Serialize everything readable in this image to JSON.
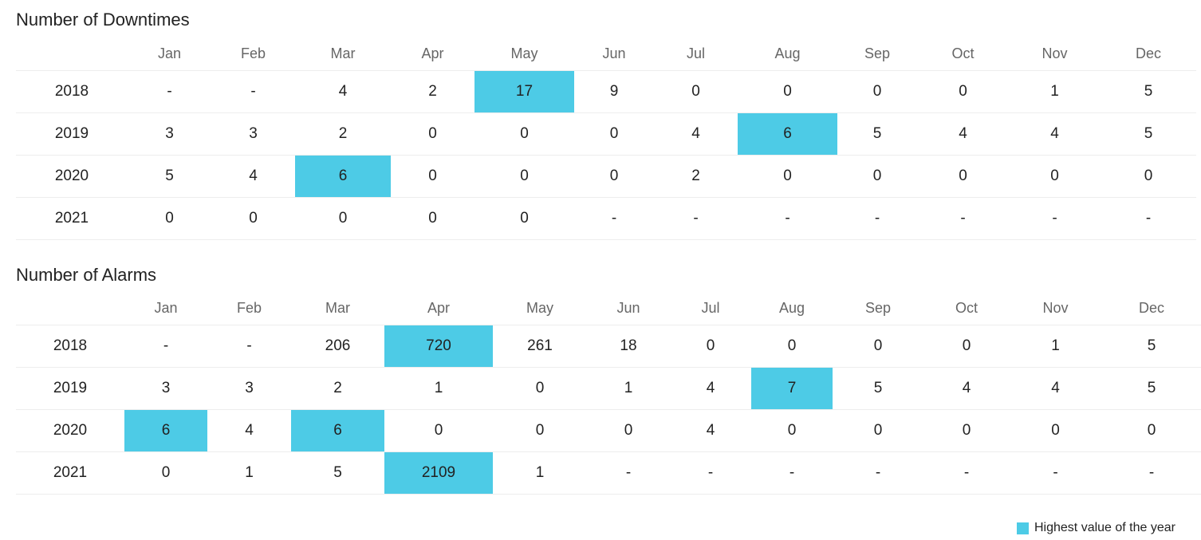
{
  "colors": {
    "highlight": "#4dcbe6",
    "text": "#222222",
    "header_text": "#666666",
    "row_divider": "#ededed"
  },
  "months": [
    "Jan",
    "Feb",
    "Mar",
    "Apr",
    "May",
    "Jun",
    "Jul",
    "Aug",
    "Sep",
    "Oct",
    "Nov",
    "Dec"
  ],
  "downtimes": {
    "title": "Number of Downtimes",
    "rows": [
      {
        "year": "2018",
        "values": [
          "-",
          "-",
          "4",
          "2",
          "17",
          "9",
          "0",
          "0",
          "0",
          "0",
          "1",
          "5"
        ],
        "highlight": [
          4
        ]
      },
      {
        "year": "2019",
        "values": [
          "3",
          "3",
          "2",
          "0",
          "0",
          "0",
          "4",
          "6",
          "5",
          "4",
          "4",
          "5"
        ],
        "highlight": [
          7
        ]
      },
      {
        "year": "2020",
        "values": [
          "5",
          "4",
          "6",
          "0",
          "0",
          "0",
          "2",
          "0",
          "0",
          "0",
          "0",
          "0"
        ],
        "highlight": [
          2
        ]
      },
      {
        "year": "2021",
        "values": [
          "0",
          "0",
          "0",
          "0",
          "0",
          "-",
          "-",
          "-",
          "-",
          "-",
          "-",
          "-"
        ],
        "highlight": []
      }
    ]
  },
  "alarms": {
    "title": "Number of Alarms",
    "rows": [
      {
        "year": "2018",
        "values": [
          "-",
          "-",
          "206",
          "720",
          "261",
          "18",
          "0",
          "0",
          "0",
          "0",
          "1",
          "5"
        ],
        "highlight": [
          3
        ]
      },
      {
        "year": "2019",
        "values": [
          "3",
          "3",
          "2",
          "1",
          "0",
          "1",
          "4",
          "7",
          "5",
          "4",
          "4",
          "5"
        ],
        "highlight": [
          7
        ]
      },
      {
        "year": "2020",
        "values": [
          "6",
          "4",
          "6",
          "0",
          "0",
          "0",
          "4",
          "0",
          "0",
          "0",
          "0",
          "0"
        ],
        "highlight": [
          0,
          2
        ]
      },
      {
        "year": "2021",
        "values": [
          "0",
          "1",
          "5",
          "2109",
          "1",
          "-",
          "-",
          "-",
          "-",
          "-",
          "-",
          "-"
        ],
        "highlight": [
          3
        ]
      }
    ]
  },
  "legend": {
    "label": "Highest value of the year"
  }
}
